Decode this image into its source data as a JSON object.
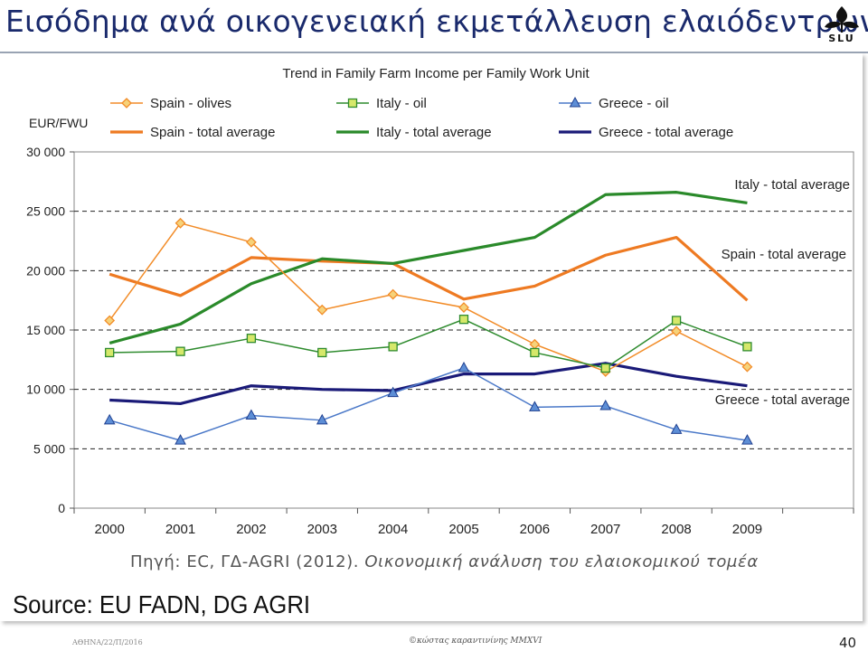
{
  "slide": {
    "title": "Εισόδημα ανά οικογενειακή εκμετάλλευση ελαιόδεντρων",
    "logo_text": "SLU",
    "footer_left": "ΑΘΗΝΑ/22/Π/2016",
    "footer_center": "©κώστας καραντινίνης MMXVI",
    "page_number": "40"
  },
  "chart_data": {
    "type": "line",
    "title": "Trend in Family Farm Income per Family Work Unit",
    "ylabel": "EUR/FWU",
    "xlabel": "",
    "x": [
      "2000",
      "2001",
      "2002",
      "2003",
      "2004",
      "2005",
      "2006",
      "2007",
      "2008",
      "2009"
    ],
    "ylim": [
      0,
      30000
    ],
    "yticks": [
      0,
      5000,
      10000,
      15000,
      20000,
      25000,
      30000
    ],
    "ytick_labels": [
      "0",
      "5 000",
      "10 000",
      "15 000",
      "20 000",
      "25 000",
      "30 000"
    ],
    "grid": "horizontal dashed",
    "legend_position": "top",
    "series": [
      {
        "name": "Spain - olives",
        "color": "#f28c28",
        "marker": "diamond",
        "width": 1.5,
        "values": [
          15800,
          24000,
          22400,
          16700,
          18000,
          16900,
          13800,
          11500,
          14900,
          11900
        ]
      },
      {
        "name": "Italy - oil",
        "color": "#2e8b2e",
        "marker": "square",
        "width": 1.5,
        "values": [
          13100,
          13200,
          14300,
          13100,
          13600,
          15900,
          13100,
          11800,
          15800,
          13600
        ]
      },
      {
        "name": "Greece - oil",
        "color": "#4a78c8",
        "marker": "triangle",
        "width": 1.5,
        "values": [
          7400,
          5700,
          7800,
          7400,
          9700,
          11800,
          8500,
          8600,
          6600,
          5700
        ]
      },
      {
        "name": "Spain - total average",
        "color": "#ee7a22",
        "marker": "none",
        "width": 3.2,
        "values": [
          19700,
          17900,
          21100,
          20800,
          20600,
          17600,
          18700,
          21300,
          22800,
          17500
        ]
      },
      {
        "name": "Italy - total average",
        "color": "#2a8a2a",
        "marker": "none",
        "width": 3.2,
        "values": [
          13900,
          15500,
          18900,
          21000,
          20600,
          21700,
          22800,
          26400,
          26600,
          25700
        ]
      },
      {
        "name": "Greece - total average",
        "color": "#1a1a78",
        "marker": "none",
        "width": 3.2,
        "values": [
          9100,
          8800,
          10300,
          10000,
          9900,
          11300,
          11300,
          12200,
          11100,
          10300
        ]
      }
    ],
    "annotations": [
      "Italy - total average",
      "Spain - total average",
      "Greece - total average"
    ],
    "source_greek_prefix": "Πηγή: EC, ΓΔ-AGRI (2012).",
    "source_greek_italic": "Οικονομική ανάλυση του ελαιοκομικού τομέα",
    "source_main": "Source: EU FADN, DG AGRI"
  }
}
